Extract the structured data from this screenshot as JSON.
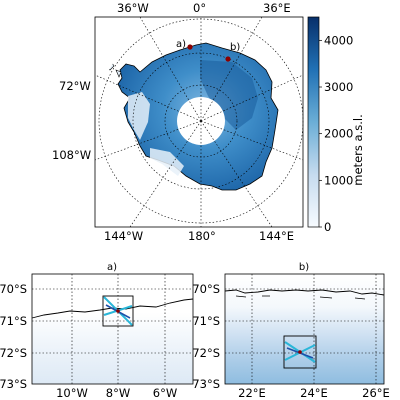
{
  "main_map": {
    "lon_labels_top": [
      "36°W",
      "0°",
      "36°E"
    ],
    "lon_labels_bottom": [
      "144°W",
      "180°",
      "144°E"
    ],
    "lat_labels_left": [
      "72°W",
      "108°W"
    ],
    "site_labels": [
      "a)",
      "b)"
    ],
    "colorbar": {
      "label": "meters a.s.l.",
      "ticks": [
        "4000",
        "3000",
        "2000",
        "1000",
        "0"
      ],
      "range": [
        0,
        4500
      ]
    }
  },
  "panel_a": {
    "title": "a)",
    "lat_ticks": [
      "70°S",
      "71°S",
      "72°S",
      "73°S"
    ],
    "lon_ticks": [
      "10°W",
      "8°W",
      "6°W"
    ]
  },
  "panel_b": {
    "title": "b)",
    "lat_ticks": [
      "70°S",
      "71°S",
      "72°S",
      "73°S"
    ],
    "lon_ticks": [
      "22°E",
      "24°E",
      "26°E"
    ]
  },
  "colors": {
    "ice_high": "#08306b",
    "ice_mid": "#4f9bd0",
    "ice_low": "#eaf2fa",
    "track_cyan": "#29b6d8",
    "track_blue": "#1f4fa8",
    "site_marker": "#8b0000"
  }
}
